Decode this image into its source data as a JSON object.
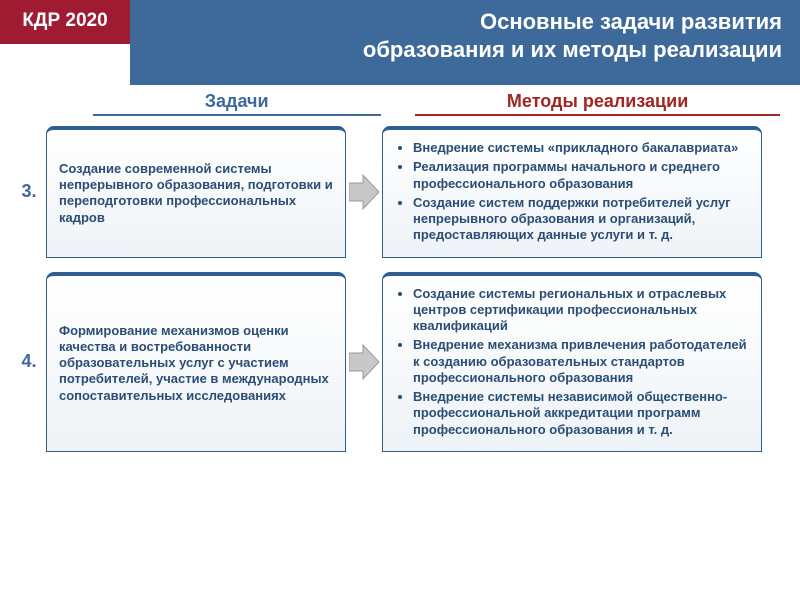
{
  "colors": {
    "badge_bg": "#9e1b32",
    "header_bg": "#3d6a9a",
    "card_border": "#2f5e90",
    "text_blue": "#2a4e75",
    "tasks_accent": "#3d6a9a",
    "methods_accent": "#a0261f",
    "arrow_fill": "#c8c8c8",
    "arrow_stroke": "#9a9a9a"
  },
  "badge": "КДР 2020",
  "title_line1": "Основные задачи развития",
  "title_line2": "образования и их методы реализации",
  "col_tasks": "Задачи",
  "col_methods": "Методы реализации",
  "rows": [
    {
      "num": "3.",
      "task": "Создание современной системы непрерывного образования, подготовки и переподготовки профессиональных кадров",
      "methods": [
        "Внедрение системы «прикладного бакалавриата»",
        "Реализация программы начального и среднего профессионального образования",
        "Создание систем поддержки потребителей услуг непрерывного образования и организаций, предоставляющих данные услуги и т. д."
      ]
    },
    {
      "num": "4.",
      "task": "Формирование механизмов оценки качества и востребованности образовательных услуг с участием потребителей, участие в международных сопоставительных исследованиях",
      "methods": [
        "Создание системы региональных и отраслевых центров сертификации профессиональных квалификаций",
        "Внедрение механизма привлечения работодателей к созданию образовательных стандартов профессионального образования",
        "Внедрение системы независимой общественно-профессиональной аккредитации программ профессионального образования и т. д."
      ]
    }
  ]
}
